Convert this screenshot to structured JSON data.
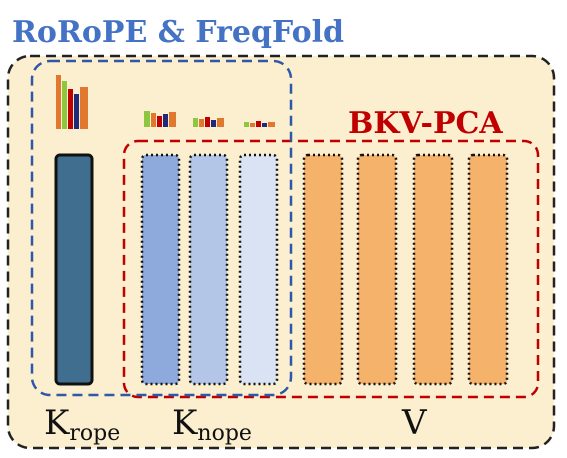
{
  "title": "RoRoPE & FreqFold",
  "pca_label": "BKV-PCA",
  "labels": {
    "k_rope_main": "K",
    "k_rope_sub": "rope",
    "k_nope_main": "K",
    "k_nope_sub": "nope",
    "v": "V"
  },
  "colors": {
    "title": "#4472c4",
    "pca_label": "#c00000",
    "panel_fill": "#fbefd0",
    "panel_border": "#222222",
    "rope_box_border": "#2e58a8",
    "pca_box_border": "#c00000",
    "k_rope_column": "#3f6e8e",
    "k_nope_columns": [
      "#8ea9db",
      "#b4c6e7",
      "#dae3f3"
    ],
    "v_column": "#f4b26a",
    "spectrum_bars": [
      "#e07830",
      "#8dc63f",
      "#c00000",
      "#1f2a7a",
      "#e07830"
    ]
  },
  "icons": {
    "spectrum": "bar-spectrum-icon"
  }
}
